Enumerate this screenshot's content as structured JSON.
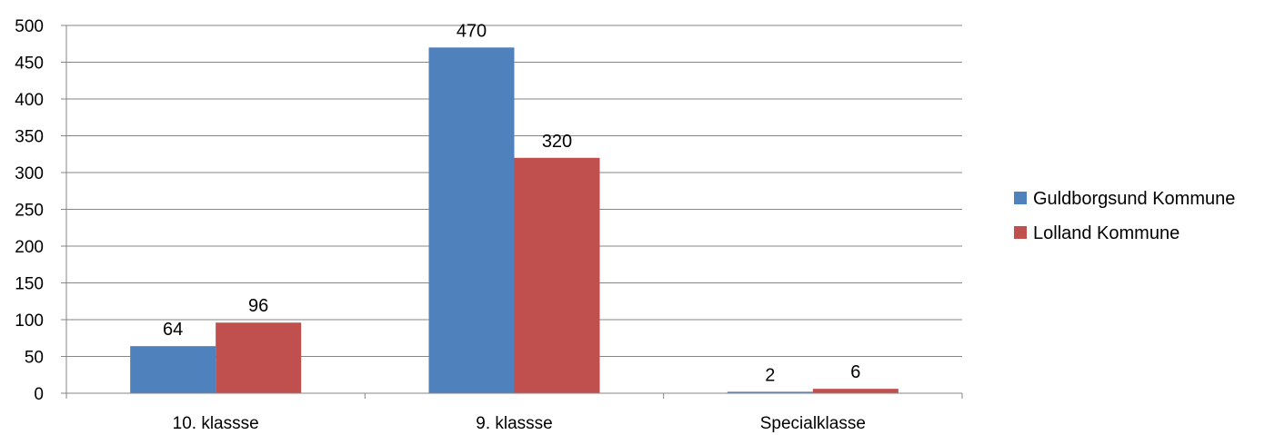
{
  "chart_data": {
    "type": "bar",
    "title": "",
    "xlabel": "",
    "ylabel": "",
    "categories": [
      "10. klassse",
      "9. klassse",
      "Specialklasse"
    ],
    "series": [
      {
        "name": "Guldborgsund Kommune",
        "values": [
          64,
          470,
          2
        ],
        "color": "#4F81BD"
      },
      {
        "name": "Lolland Kommune",
        "values": [
          96,
          320,
          6
        ],
        "color": "#C0504D"
      }
    ],
    "ylim": [
      0,
      500
    ],
    "yticks": [
      0,
      50,
      100,
      150,
      200,
      250,
      300,
      350,
      400,
      450,
      500
    ],
    "grid": true,
    "legend_position": "right",
    "data_labels": true
  }
}
